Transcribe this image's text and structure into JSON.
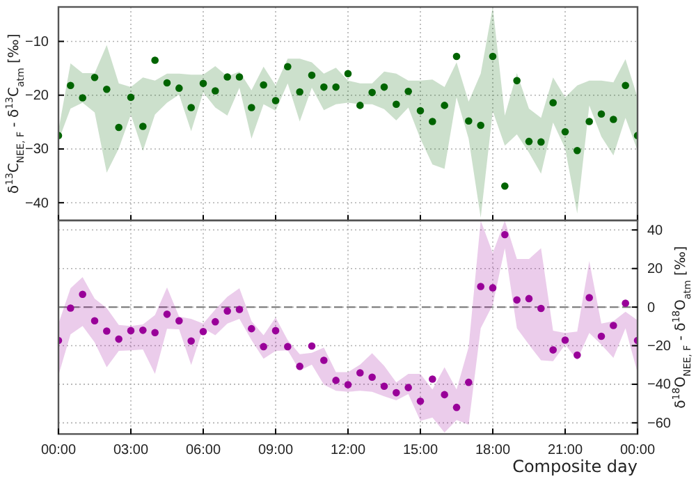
{
  "chart_data": [
    {
      "type": "scatter",
      "ylabel": "δ$^{13}$C$_{NEE, F}$ - δ$^{13}$C$_{atm}$ [‰]",
      "xlim": [
        0,
        24
      ],
      "xticks": [
        {
          "value": 0,
          "label": null
        },
        {
          "value": 3,
          "label": null
        },
        {
          "value": 6,
          "label": null
        },
        {
          "value": 9,
          "label": null
        },
        {
          "value": 12,
          "label": null
        },
        {
          "value": 15,
          "label": null
        },
        {
          "value": 18,
          "label": null
        },
        {
          "value": 21,
          "label": null
        },
        {
          "value": 24,
          "label": null
        }
      ],
      "ylim": [
        -43.3,
        -3.6
      ],
      "yticks": [
        -40,
        -30,
        -20,
        -10
      ],
      "tick_labels": "y",
      "grid": true,
      "marker": "circle",
      "x": [
        0,
        0.5,
        1,
        1.5,
        2,
        2.5,
        3,
        3.5,
        4,
        4.5,
        5,
        5.5,
        6,
        6.5,
        7,
        7.5,
        8,
        8.5,
        9,
        9.5,
        10,
        10.5,
        11,
        11.5,
        12,
        12.5,
        13,
        13.5,
        14,
        14.5,
        15,
        15.5,
        16,
        16.5,
        17,
        17.5,
        18,
        18.5,
        19,
        19.5,
        20,
        20.5,
        21,
        21.5,
        22,
        22.5,
        23,
        23.5,
        24
      ],
      "series": [
        {
          "color": "#006400",
          "values": [
            -27.5,
            -18.2,
            -20.5,
            -16.7,
            -18.9,
            -26.0,
            -20.4,
            -25.8,
            -13.5,
            -17.7,
            -18.7,
            -22.3,
            -17.8,
            -19.2,
            -16.6,
            -16.6,
            -22.3,
            -18.1,
            -21.0,
            -14.7,
            -19.4,
            -16.3,
            -18.5,
            -18.5,
            -16.0,
            -21.9,
            -19.5,
            -18.5,
            -21.7,
            -19.3,
            -22.9,
            -24.9,
            -21.9,
            -12.8,
            -24.8,
            -25.6,
            -12.8,
            -36.9,
            -17.3,
            -28.6,
            -28.7,
            -21.4,
            -26.8,
            -30.3,
            -24.9,
            -23.5,
            -24.5,
            -18.2,
            -27.5
          ],
          "upper": [
            -26.5,
            -14.1,
            -15.9,
            -15.9,
            -10.7,
            -17.8,
            -18.5,
            -16.7,
            -17.3,
            -16.0,
            -16.0,
            -16.2,
            -16.2,
            -14.6,
            -16.5,
            -15.6,
            -19.1,
            -14.7,
            -18.2,
            -13.2,
            -13.2,
            -13.9,
            -16.0,
            -14.9,
            -17.3,
            -17.8,
            -17.8,
            -15.6,
            -16.0,
            -17.3,
            -17.3,
            -17.1,
            -18.5,
            -13.9,
            -21.2,
            -16.0,
            -3.6,
            -23.8,
            -15.9,
            -22.5,
            -24.2,
            -16.7,
            -20.4,
            -18.2,
            -17.3,
            -17.3,
            -17.6,
            -13.3,
            -20.4
          ],
          "lower": [
            -28.5,
            -22.5,
            -21.4,
            -23.2,
            -34.4,
            -29.9,
            -23.6,
            -30.4,
            -23.6,
            -21.4,
            -19.9,
            -26.7,
            -19.5,
            -22.3,
            -23.8,
            -18.6,
            -28.1,
            -21.7,
            -22.9,
            -17.8,
            -24.9,
            -18.6,
            -22.8,
            -21.7,
            -21.4,
            -21.7,
            -21.7,
            -22.6,
            -24.7,
            -22.3,
            -28.1,
            -32.9,
            -33.7,
            -20.4,
            -28.1,
            -42.8,
            -23.0,
            -29.4,
            -27.3,
            -30.7,
            -34.6,
            -25.1,
            -29.9,
            -42.0,
            -21.9,
            -27.7,
            -31.2,
            -24.2,
            -30.3
          ]
        }
      ]
    },
    {
      "type": "scatter",
      "xlabel": "Composite day",
      "y2label": "δ$^{18}$O$_{NEE, F}$ - δ$^{18}$O$_{atm}$ [‰]",
      "xlim": [
        0,
        24
      ],
      "xticks": [
        {
          "value": 0,
          "label": "00:00"
        },
        {
          "value": 3,
          "label": "03:00"
        },
        {
          "value": 6,
          "label": "06:00"
        },
        {
          "value": 9,
          "label": "09:00"
        },
        {
          "value": 12,
          "label": "12:00"
        },
        {
          "value": 15,
          "label": "15:00"
        },
        {
          "value": 18,
          "label": "18:00"
        },
        {
          "value": 21,
          "label": "21:00"
        },
        {
          "value": 24,
          "label": "00:00"
        }
      ],
      "y2lim": [
        -65.8,
        44.9
      ],
      "y2ticks": [
        -60,
        -40,
        -20,
        0,
        20,
        40
      ],
      "grid": true,
      "marker": "circle",
      "ref_lines": [
        {
          "axis": "y2",
          "value": 0,
          "color": "#808080",
          "line_style": "dashed"
        }
      ],
      "x": [
        0,
        0.5,
        1,
        1.5,
        2,
        2.5,
        3,
        3.5,
        4,
        4.5,
        5,
        5.5,
        6,
        6.5,
        7,
        7.5,
        8,
        8.5,
        9,
        9.5,
        10,
        10.5,
        11,
        11.5,
        12,
        12.5,
        13,
        13.5,
        14,
        14.5,
        15,
        15.5,
        16,
        16.5,
        17,
        17.5,
        18,
        18.5,
        19,
        19.5,
        20,
        20.5,
        21,
        21.5,
        22,
        22.5,
        23,
        23.5,
        24
      ],
      "series": [
        {
          "color": "#990099",
          "axis": "y2",
          "values": [
            -17.3,
            -0.5,
            6.6,
            -7.1,
            -12.4,
            -16.6,
            -12.2,
            -12.0,
            -13.2,
            -3.7,
            -7.1,
            -17.6,
            -12.7,
            -7.6,
            -2.0,
            -1.2,
            -11.2,
            -20.5,
            -12.2,
            -20.5,
            -30.7,
            -20.2,
            -27.6,
            -38.0,
            -40.2,
            -34.1,
            -36.3,
            -41.0,
            -44.4,
            -41.7,
            -48.8,
            -37.3,
            -45.4,
            -52.0,
            -39.0,
            10.7,
            10.0,
            37.6,
            3.7,
            4.4,
            -0.7,
            -22.2,
            -17.1,
            -24.9,
            4.9,
            -15.1,
            -9.5,
            2.0,
            -17.3
          ],
          "upper": [
            -8.5,
            9.8,
            15.6,
            4.4,
            -0.5,
            -9.3,
            -9.8,
            -9.0,
            -4.1,
            10.2,
            -4.9,
            -6.1,
            -8.5,
            -1.2,
            5.4,
            9.8,
            -7.3,
            -14.6,
            -5.4,
            -17.1,
            -24.4,
            -23.7,
            -21.0,
            -33.7,
            -33.7,
            -29.8,
            -23.9,
            -30.5,
            -39.0,
            -34.6,
            -34.6,
            -42.7,
            -31.2,
            -42.7,
            -20.7,
            44.9,
            28.0,
            44.9,
            24.9,
            24.9,
            30.5,
            -12.2,
            -13.4,
            -12.7,
            23.9,
            -8.5,
            -7.3,
            -2.4,
            -6.8
          ],
          "lower": [
            -35.4,
            -14.1,
            -9.8,
            -18.3,
            -31.2,
            -22.7,
            -22.4,
            -22.0,
            -34.6,
            -11.2,
            -11.5,
            -30.0,
            -11.0,
            -14.6,
            -8.5,
            -6.1,
            -17.1,
            -26.8,
            -22.7,
            -22.4,
            -32.9,
            -29.8,
            -40.2,
            -43.4,
            -43.9,
            -43.4,
            -43.9,
            -46.3,
            -48.3,
            -45.1,
            -59.0,
            -57.3,
            -65.0,
            -58.5,
            -61.0,
            -11.0,
            1.2,
            30.5,
            -11.0,
            -19.5,
            -27.6,
            -28.0,
            -19.5,
            -27.3,
            -13.4,
            -19.5,
            -26.3,
            -11.0,
            -34.1
          ]
        }
      ]
    }
  ]
}
